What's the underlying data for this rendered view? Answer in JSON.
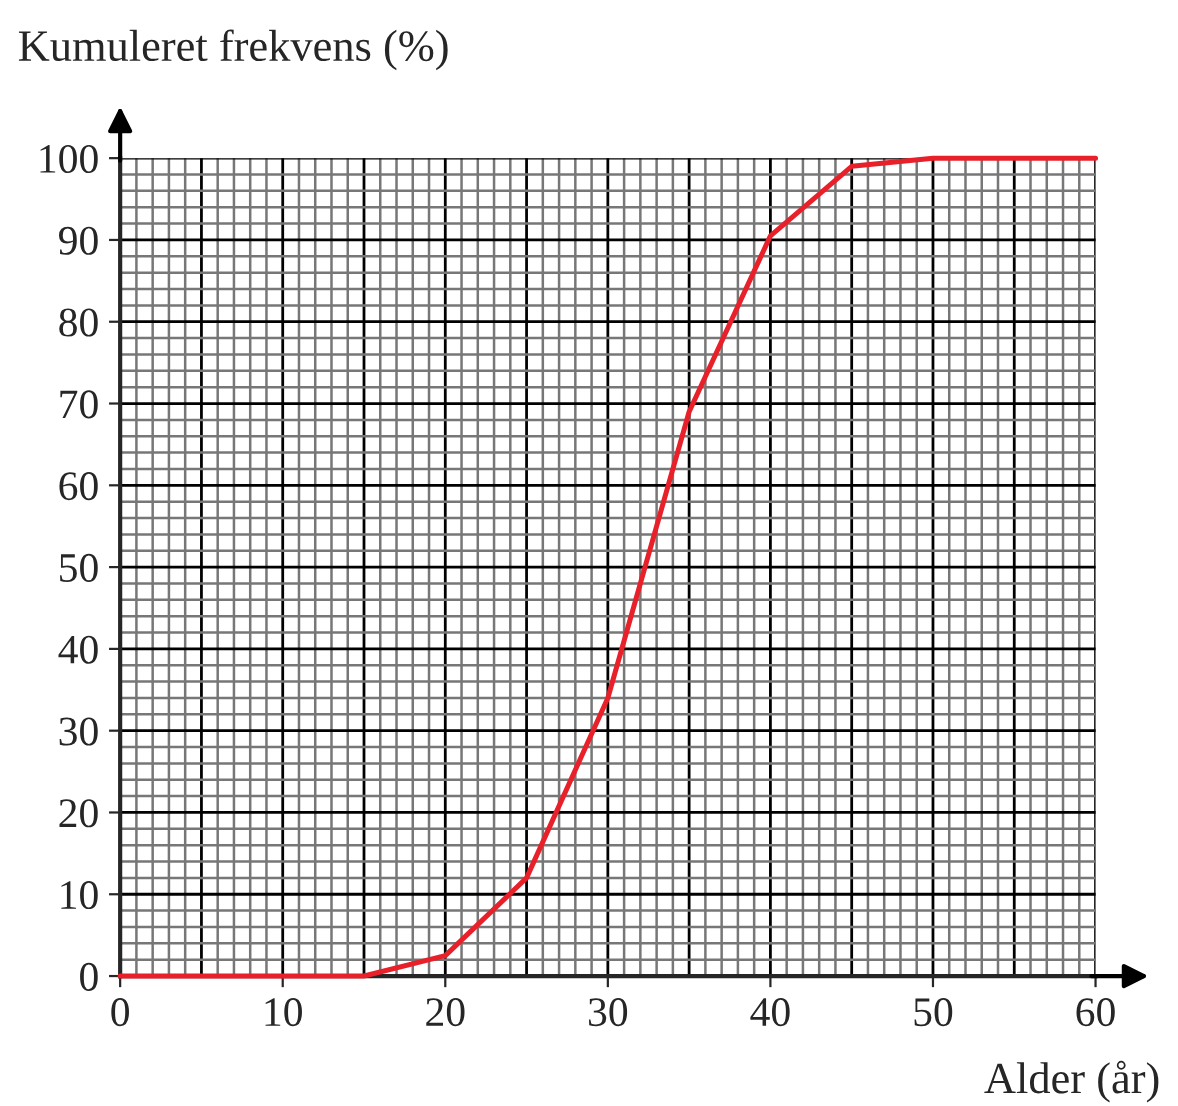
{
  "chart_data": {
    "type": "line",
    "xlabel": "Alder (år)",
    "ylabel": "Kumuleret frekvens (%)",
    "x": [
      0,
      15,
      20,
      25,
      30,
      35,
      40,
      45,
      50,
      60
    ],
    "series": [
      {
        "color": "#e8202a",
        "values": [
          0,
          0,
          2.5,
          12,
          34,
          69,
          90.5,
          99,
          100,
          100
        ]
      }
    ],
    "xlim": [
      0,
      60
    ],
    "ylim": [
      0,
      100
    ],
    "xticks": [
      0,
      10,
      20,
      30,
      40,
      50,
      60
    ],
    "yticks": [
      0,
      10,
      20,
      30,
      40,
      50,
      60,
      70,
      80,
      90,
      100
    ],
    "grid": true
  }
}
